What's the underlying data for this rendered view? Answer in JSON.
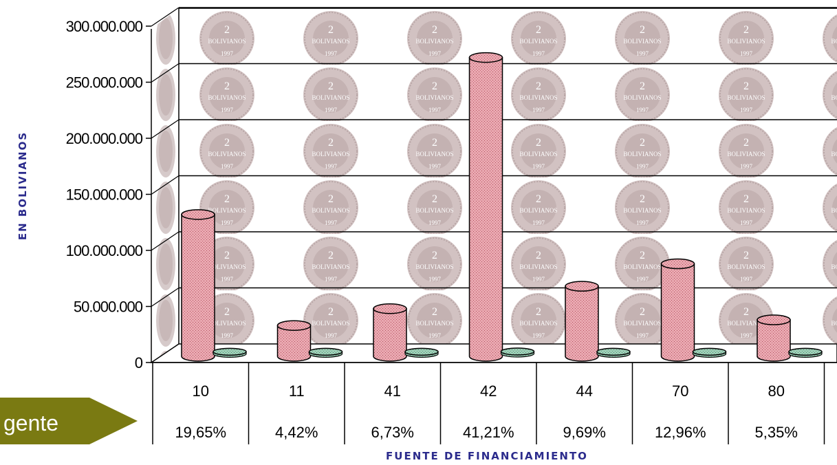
{
  "chart_data": {
    "type": "bar",
    "ylabel": "EN BOLIVIANOS",
    "xlabel": "FUENTE DE FINANCIAMIENTO",
    "ylim": [
      0,
      300000000
    ],
    "yticks": [
      "0",
      "50.000.000",
      "100.000.000",
      "150.000.000",
      "200.000.000",
      "250.000.000",
      "300.000.000"
    ],
    "ytick_values": [
      0,
      50000000,
      100000000,
      150000000,
      200000000,
      250000000,
      300000000
    ],
    "categories": [
      "10",
      "11",
      "41",
      "42",
      "44",
      "70",
      "80"
    ],
    "percentages": [
      "19,65%",
      "4,42%",
      "6,73%",
      "41,21%",
      "9,69%",
      "12,96%",
      "5,35%"
    ],
    "series": [
      {
        "values": [
          132000000,
          33000000,
          48000000,
          272000000,
          68000000,
          88000000,
          38000000
        ],
        "color": "#e8a8b0"
      },
      {
        "values": [
          400000,
          400000,
          400000,
          600000,
          400000,
          400000,
          400000
        ],
        "color": "#8fbfa8"
      }
    ],
    "grid": true,
    "background": "coin-pattern"
  },
  "side_tag": {
    "text": "gente",
    "color": "#7a7a12"
  },
  "colors": {
    "axis_title": "#2b2b8c"
  }
}
